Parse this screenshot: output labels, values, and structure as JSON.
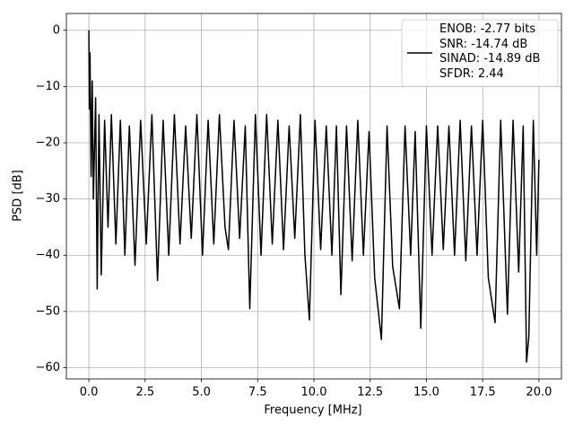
{
  "chart_data": {
    "type": "line",
    "xlabel": "Frequency [MHz]",
    "ylabel": "PSD [dB]",
    "xlim": [
      -1,
      21
    ],
    "ylim": [
      -62,
      3
    ],
    "xticks": [
      {
        "value": 0,
        "label": "0.0"
      },
      {
        "value": 2.5,
        "label": "2.5"
      },
      {
        "value": 5,
        "label": "5.0"
      },
      {
        "value": 7.5,
        "label": "7.5"
      },
      {
        "value": 10,
        "label": "10.0"
      },
      {
        "value": 12.5,
        "label": "12.5"
      },
      {
        "value": 15,
        "label": "15.0"
      },
      {
        "value": 17.5,
        "label": "17.5"
      },
      {
        "value": 20,
        "label": "20.0"
      }
    ],
    "yticks": [
      0,
      {
        "value": -10,
        "label": "−10"
      },
      {
        "value": -20,
        "label": "−20"
      },
      {
        "value": -30,
        "label": "−30"
      },
      {
        "value": -40,
        "label": "−40"
      },
      {
        "value": -50,
        "label": "−50"
      },
      {
        "value": -60,
        "label": "−60"
      }
    ],
    "grid": true,
    "legend": "upper right",
    "x": [
      0,
      0.02,
      0.05,
      0.1,
      0.15,
      0.2,
      0.3,
      0.37,
      0.45,
      0.55,
      0.7,
      0.85,
      1.0,
      1.2,
      1.4,
      1.6,
      1.8,
      2.05,
      2.3,
      2.55,
      2.8,
      3.05,
      3.3,
      3.55,
      3.8,
      4.05,
      4.3,
      4.55,
      4.8,
      5.05,
      5.3,
      5.55,
      5.8,
      6.05,
      6.2,
      6.45,
      6.7,
      6.95,
      7.15,
      7.4,
      7.65,
      7.9,
      8.15,
      8.4,
      8.65,
      8.9,
      9.15,
      9.4,
      9.6,
      9.8,
      10.05,
      10.3,
      10.55,
      10.8,
      11.0,
      11.2,
      11.45,
      11.7,
      11.95,
      12.2,
      12.45,
      12.7,
      13.0,
      13.25,
      13.5,
      13.8,
      14.05,
      14.3,
      14.5,
      14.75,
      15.0,
      15.25,
      15.5,
      15.75,
      16.0,
      16.25,
      16.5,
      16.75,
      17.0,
      17.25,
      17.5,
      17.75,
      18.05,
      18.3,
      18.6,
      18.85,
      19.1,
      19.3,
      19.45,
      19.55,
      19.75,
      19.9,
      20.0
    ],
    "series": [
      {
        "name": "ENOB: -2.77 bits\nSNR: -14.74 dB\nSINAD: -14.89 dB\nSFDR: 2.44",
        "color": "#000000",
        "values": [
          0,
          -14,
          -4,
          -26,
          -9,
          -30,
          -12,
          -46,
          -15,
          -43.5,
          -16,
          -35,
          -15,
          -38,
          -16,
          -40,
          -17,
          -41.8,
          -16,
          -38,
          -15,
          -44.5,
          -16,
          -40,
          -15,
          -38,
          -17,
          -37,
          -15,
          -40,
          -16,
          -38,
          -15,
          -35,
          -39,
          -16,
          -37,
          -17,
          -49.5,
          -15,
          -40,
          -15,
          -38,
          -16,
          -39,
          -17,
          -37,
          -15,
          -40,
          -51.5,
          -16,
          -39,
          -17,
          -40,
          -17,
          -47,
          -17,
          -41,
          -16,
          -40,
          -18,
          -44,
          -55,
          -17,
          -42,
          -49.5,
          -17,
          -40,
          -18,
          -53,
          -17,
          -40,
          -17,
          -39,
          -17,
          -40,
          -16,
          -41,
          -17,
          -40,
          -16,
          -44,
          -52,
          -16,
          -50.5,
          -16,
          -43,
          -17,
          -59,
          -54.5,
          -16,
          -40,
          -23
        ]
      }
    ]
  }
}
